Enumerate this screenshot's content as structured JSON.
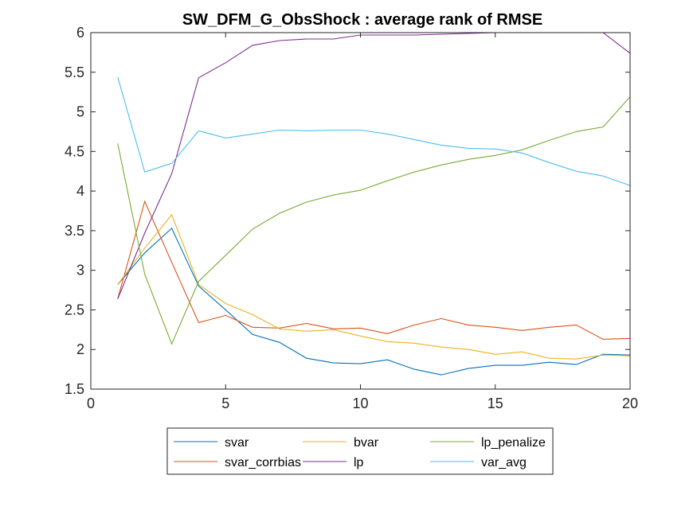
{
  "chart_data": {
    "type": "line",
    "title": "SW_DFM_G_ObsShock : average rank of RMSE",
    "xlabel": "",
    "ylabel": "",
    "xlim": [
      0,
      20
    ],
    "ylim": [
      1.5,
      6
    ],
    "xticks": [
      0,
      5,
      10,
      15,
      20
    ],
    "yticks": [
      1.5,
      2,
      2.5,
      3,
      3.5,
      4,
      4.5,
      5,
      5.5,
      6
    ],
    "grid": false,
    "legend_position": "bottom-outside",
    "x": [
      1,
      2,
      3,
      4,
      5,
      6,
      7,
      8,
      9,
      10,
      11,
      12,
      13,
      14,
      15,
      16,
      17,
      18,
      19,
      20
    ],
    "series": [
      {
        "name": "svar",
        "color": "#0072BD",
        "values": [
          2.82,
          3.22,
          3.53,
          2.8,
          2.5,
          2.19,
          2.09,
          1.89,
          1.83,
          1.82,
          1.87,
          1.75,
          1.68,
          1.76,
          1.8,
          1.8,
          1.84,
          1.81,
          1.94,
          1.93
        ]
      },
      {
        "name": "svar_corrbias",
        "color": "#D95319",
        "values": [
          2.64,
          3.87,
          3.1,
          2.34,
          2.43,
          2.28,
          2.27,
          2.33,
          2.26,
          2.27,
          2.2,
          2.31,
          2.39,
          2.31,
          2.28,
          2.24,
          2.28,
          2.31,
          2.13,
          2.14
        ]
      },
      {
        "name": "bvar",
        "color": "#EDB120",
        "values": [
          2.82,
          3.28,
          3.7,
          2.82,
          2.58,
          2.44,
          2.26,
          2.23,
          2.25,
          2.17,
          2.1,
          2.08,
          2.03,
          2.0,
          1.94,
          1.97,
          1.89,
          1.88,
          1.93,
          1.92
        ]
      },
      {
        "name": "lp",
        "color": "#7E2F8E",
        "values": [
          2.64,
          3.47,
          4.22,
          5.43,
          5.62,
          5.84,
          5.9,
          5.92,
          5.92,
          5.97,
          5.97,
          5.97,
          5.98,
          5.99,
          6.0,
          6.0,
          6.0,
          6.0,
          6.0,
          5.74
        ]
      },
      {
        "name": "lp_penalize",
        "color": "#77AC30",
        "values": [
          4.6,
          2.95,
          2.07,
          2.86,
          3.19,
          3.52,
          3.72,
          3.86,
          3.95,
          4.01,
          4.13,
          4.24,
          4.33,
          4.4,
          4.45,
          4.52,
          4.64,
          4.75,
          4.81,
          5.19
        ]
      },
      {
        "name": "var_avg",
        "color": "#4DBEEE",
        "values": [
          5.44,
          4.24,
          4.35,
          4.76,
          4.67,
          4.72,
          4.77,
          4.76,
          4.77,
          4.77,
          4.72,
          4.65,
          4.58,
          4.54,
          4.53,
          4.48,
          4.36,
          4.25,
          4.19,
          4.07
        ]
      }
    ]
  },
  "legend": {
    "entries": [
      "svar",
      "bvar",
      "lp_penalize",
      "svar_corrbias",
      "lp",
      "var_avg"
    ]
  }
}
